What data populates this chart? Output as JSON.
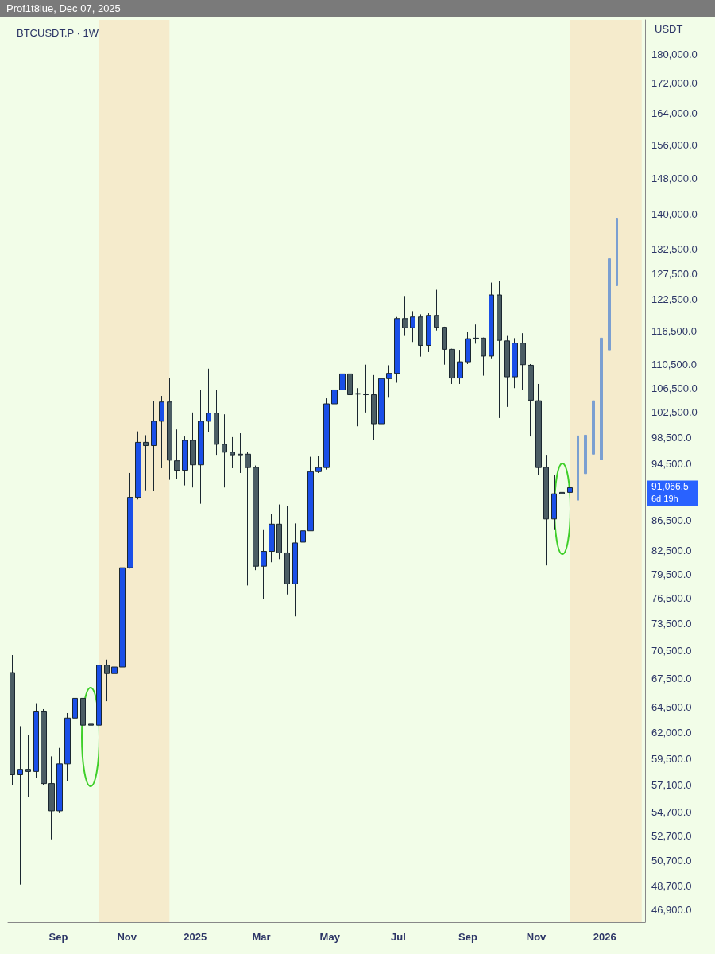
{
  "chart_data": {
    "type": "candlestick",
    "title": "BTCUSDT.P · 1W",
    "ylabel": "USDT",
    "annotations": [
      "Prof1t8lue, Dec 07, 2025",
      "91,066.5",
      "6d 19h"
    ],
    "log": "y",
    "grid": false,
    "xlim": [
      "2024-07-18",
      "2026-02-06"
    ],
    "xticks": [
      {
        "value": "2024-09-01",
        "label": "Sep"
      },
      {
        "value": "2024-11-01",
        "label": "Nov"
      },
      {
        "value": "2025-01-01",
        "label": "2025"
      },
      {
        "value": "2025-03-01",
        "label": "Mar"
      },
      {
        "value": "2025-05-01",
        "label": "May"
      },
      {
        "value": "2025-07-01",
        "label": "Jul"
      },
      {
        "value": "2025-09-01",
        "label": "Sep"
      },
      {
        "value": "2025-11-01",
        "label": "Nov"
      },
      {
        "value": "2026-01-01",
        "label": "2026"
      }
    ],
    "ylim": [
      46000,
      190000
    ],
    "yticks": [
      {
        "value": 46900,
        "label": "46,900.0"
      },
      {
        "value": 48700,
        "label": "48,700.0"
      },
      {
        "value": 50700,
        "label": "50,700.0"
      },
      {
        "value": 52700,
        "label": "52,700.0"
      },
      {
        "value": 54700,
        "label": "54,700.0"
      },
      {
        "value": 57100,
        "label": "57,100.0"
      },
      {
        "value": 59500,
        "label": "59,500.0"
      },
      {
        "value": 62000,
        "label": "62,000.0"
      },
      {
        "value": 64500,
        "label": "64,500.0"
      },
      {
        "value": 67500,
        "label": "67,500.0"
      },
      {
        "value": 70500,
        "label": "70,500.0"
      },
      {
        "value": 73500,
        "label": "73,500.0"
      },
      {
        "value": 76500,
        "label": "76,500.0"
      },
      {
        "value": 79500,
        "label": "79,500.0"
      },
      {
        "value": 82500,
        "label": "82,500.0"
      },
      {
        "value": 86500,
        "label": "86,500.0"
      },
      {
        "value": 94500,
        "label": "94,500.0"
      },
      {
        "value": 98500,
        "label": "98,500.0"
      },
      {
        "value": 102500,
        "label": "102,500.0"
      },
      {
        "value": 106500,
        "label": "106,500.0"
      },
      {
        "value": 110500,
        "label": "110,500.0"
      },
      {
        "value": 116500,
        "label": "116,500.0"
      },
      {
        "value": 122500,
        "label": "122,500.0"
      },
      {
        "value": 127500,
        "label": "127,500.0"
      },
      {
        "value": 132500,
        "label": "132,500.0"
      },
      {
        "value": 140000,
        "label": "140,000.0"
      },
      {
        "value": 148000,
        "label": "148,000.0"
      },
      {
        "value": 156000,
        "label": "156,000.0"
      },
      {
        "value": 164000,
        "label": "164,000.0"
      },
      {
        "value": 172000,
        "label": "172,000.0"
      },
      {
        "value": 180000,
        "label": "180,000.0"
      }
    ],
    "bands": [
      {
        "axis": "x",
        "from": "2024-10-07",
        "to": "2024-12-09",
        "color": "#f5ebcc"
      },
      {
        "axis": "x",
        "from": "2025-12-01",
        "to": "2026-02-03",
        "color": "#f5ebcc"
      }
    ],
    "series": [
      {
        "x": [
          "2024-07-22",
          "2024-07-29",
          "2024-08-05",
          "2024-08-12",
          "2024-08-19",
          "2024-08-26",
          "2024-09-02",
          "2024-09-09",
          "2024-09-16",
          "2024-09-23",
          "2024-09-30",
          "2024-10-07",
          "2024-10-14",
          "2024-10-21",
          "2024-10-28",
          "2024-11-04",
          "2024-11-11",
          "2024-11-18",
          "2024-11-25",
          "2024-12-02",
          "2024-12-09",
          "2024-12-16",
          "2024-12-23",
          "2024-12-30",
          "2025-01-06",
          "2025-01-13",
          "2025-01-20",
          "2025-01-27",
          "2025-02-03",
          "2025-02-10",
          "2025-02-17",
          "2025-02-24",
          "2025-03-03",
          "2025-03-10",
          "2025-03-17",
          "2025-03-24",
          "2025-03-31",
          "2025-04-07",
          "2025-04-14",
          "2025-04-21",
          "2025-04-28",
          "2025-05-05",
          "2025-05-12",
          "2025-05-19",
          "2025-05-26",
          "2025-06-02",
          "2025-06-09",
          "2025-06-16",
          "2025-06-23",
          "2025-06-30",
          "2025-07-07",
          "2025-07-14",
          "2025-07-21",
          "2025-07-28",
          "2025-08-04",
          "2025-08-11",
          "2025-08-18",
          "2025-08-25",
          "2025-09-01",
          "2025-09-08",
          "2025-09-15",
          "2025-09-22",
          "2025-09-29",
          "2025-10-06",
          "2025-10-13",
          "2025-10-20",
          "2025-10-27",
          "2025-11-03",
          "2025-11-10",
          "2025-11-17",
          "2025-11-24",
          "2025-12-01"
        ],
        "ohlc": [
          [
            68100,
            70000,
            57100,
            58000
          ],
          [
            58000,
            62600,
            48800,
            58500
          ],
          [
            58500,
            61700,
            56000,
            58300
          ],
          [
            58300,
            64900,
            57700,
            64100
          ],
          [
            64100,
            64300,
            57100,
            57200
          ],
          [
            57200,
            59700,
            52400,
            54800
          ],
          [
            54800,
            60500,
            54600,
            59000
          ],
          [
            59000,
            63900,
            57400,
            63400
          ],
          [
            63400,
            66400,
            62500,
            65400
          ],
          [
            65400,
            65500,
            59800,
            62700
          ],
          [
            62800,
            64300,
            58800,
            62700
          ],
          [
            62700,
            69300,
            62700,
            68900
          ],
          [
            68900,
            69500,
            65100,
            68000
          ],
          [
            68000,
            73600,
            67500,
            68700
          ],
          [
            68700,
            81600,
            66700,
            80300
          ],
          [
            80300,
            93200,
            80200,
            89700
          ],
          [
            89700,
            99500,
            89400,
            97800
          ],
          [
            97800,
            98900,
            90700,
            97300
          ],
          [
            97300,
            104400,
            90600,
            101100
          ],
          [
            101100,
            105200,
            93900,
            104200
          ],
          [
            104200,
            108200,
            92200,
            95100
          ],
          [
            95000,
            99800,
            92300,
            93600
          ],
          [
            93600,
            98700,
            91400,
            98100
          ],
          [
            98100,
            102500,
            91100,
            94400
          ],
          [
            94400,
            106200,
            88800,
            101100
          ],
          [
            101100,
            109800,
            99400,
            102400
          ],
          [
            102400,
            106200,
            95900,
            97500
          ],
          [
            97500,
            102200,
            91100,
            96300
          ],
          [
            96300,
            98600,
            93900,
            95900
          ],
          [
            96000,
            99200,
            93200,
            95900
          ],
          [
            96000,
            96300,
            78100,
            94000
          ],
          [
            94000,
            94300,
            80000,
            80500
          ],
          [
            80500,
            85200,
            76400,
            82400
          ],
          [
            82400,
            87400,
            81000,
            86000
          ],
          [
            86000,
            88700,
            81400,
            82200
          ],
          [
            82200,
            88500,
            77000,
            78300
          ],
          [
            78300,
            86100,
            74400,
            83500
          ],
          [
            83600,
            86400,
            83000,
            85100
          ],
          [
            85100,
            95600,
            85100,
            93400
          ],
          [
            93400,
            95700,
            93200,
            94000
          ],
          [
            94000,
            104800,
            93700,
            103900
          ],
          [
            103900,
            106600,
            100600,
            106200
          ],
          [
            106200,
            111900,
            101900,
            108900
          ],
          [
            108900,
            110500,
            103000,
            105400
          ],
          [
            105600,
            106500,
            100300,
            105500
          ],
          [
            105500,
            110500,
            102500,
            105400
          ],
          [
            105400,
            108700,
            98100,
            100700
          ],
          [
            100700,
            108700,
            99500,
            108100
          ],
          [
            108100,
            110400,
            104900,
            109000
          ],
          [
            109000,
            119100,
            107400,
            118800
          ],
          [
            118800,
            123100,
            115600,
            117100
          ],
          [
            117100,
            120200,
            114500,
            119100
          ],
          [
            119100,
            119600,
            111900,
            113900
          ],
          [
            113900,
            119800,
            112700,
            119400
          ],
          [
            119400,
            124300,
            116600,
            117200
          ],
          [
            117200,
            117300,
            110500,
            113200
          ],
          [
            113200,
            113300,
            107200,
            108200
          ],
          [
            108200,
            113100,
            107200,
            111000
          ],
          [
            111000,
            116400,
            110600,
            115100
          ],
          [
            115200,
            117700,
            114200,
            115100
          ],
          [
            115200,
            115300,
            108600,
            112000
          ],
          [
            112000,
            125700,
            111600,
            123300
          ],
          [
            123300,
            126000,
            101600,
            114800
          ],
          [
            114700,
            115600,
            103400,
            108400
          ],
          [
            108400,
            115200,
            106500,
            114300
          ],
          [
            114300,
            116100,
            106200,
            110500
          ],
          [
            110400,
            110600,
            98700,
            104500
          ],
          [
            104400,
            107200,
            92900,
            94000
          ],
          [
            94000,
            95900,
            80600,
            86700
          ],
          [
            86700,
            92900,
            85200,
            90200
          ],
          [
            90400,
            94000,
            83600,
            90200
          ],
          [
            90400,
            91700,
            90300,
            91066.5
          ]
        ],
        "colors": [
          "#4b5d64",
          "#1a4fe8",
          "#4b5d64",
          "#1a4fe8",
          "#4b5d64",
          "#4b5d64",
          "#1a4fe8",
          "#1a4fe8",
          "#1a4fe8",
          "#4b5d64",
          "#4b5d64",
          "#1a4fe8",
          "#4b5d64",
          "#1a4fe8",
          "#1a4fe8",
          "#1a4fe8",
          "#1a4fe8",
          "#4b5d64",
          "#1a4fe8",
          "#1a4fe8",
          "#4b5d64",
          "#4b5d64",
          "#1a4fe8",
          "#4b5d64",
          "#1a4fe8",
          "#1a4fe8",
          "#4b5d64",
          "#4b5d64",
          "#4b5d64",
          "#4b5d64",
          "#4b5d64",
          "#4b5d64",
          "#1a4fe8",
          "#1a4fe8",
          "#4b5d64",
          "#4b5d64",
          "#1a4fe8",
          "#1a4fe8",
          "#1a4fe8",
          "#1a4fe8",
          "#1a4fe8",
          "#1a4fe8",
          "#1a4fe8",
          "#4b5d64",
          "#4b5d64",
          "#4b5d64",
          "#4b5d64",
          "#1a4fe8",
          "#1a4fe8",
          "#1a4fe8",
          "#4b5d64",
          "#1a4fe8",
          "#4b5d64",
          "#1a4fe8",
          "#4b5d64",
          "#4b5d64",
          "#4b5d64",
          "#1a4fe8",
          "#1a4fe8",
          "#4b5d64",
          "#4b5d64",
          "#1a4fe8",
          "#4b5d64",
          "#4b5d64",
          "#1a4fe8",
          "#4b5d64",
          "#4b5d64",
          "#4b5d64",
          "#4b5d64",
          "#1a4fe8",
          "#4b5d64",
          "#1a4fe8"
        ]
      },
      {
        "color": "#7b9fd1",
        "x": [
          "2025-12-08",
          "2025-12-15",
          "2025-12-22",
          "2025-12-29",
          "2026-01-05",
          "2026-01-12"
        ],
        "ohlc": [
          [
            89300,
            98800,
            89300,
            98800
          ],
          [
            93100,
            98900,
            93100,
            98900
          ],
          [
            96000,
            104400,
            96000,
            104400
          ],
          [
            95200,
            115200,
            95200,
            115200
          ],
          [
            113100,
            130500,
            113100,
            130500
          ],
          [
            125100,
            139100,
            125100,
            139100
          ]
        ]
      }
    ]
  }
}
